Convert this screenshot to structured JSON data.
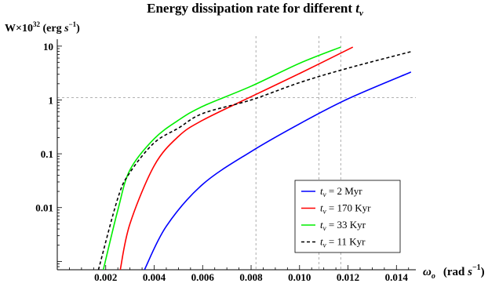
{
  "chart_data": {
    "type": "line",
    "title_main": "Energy dissipation rate for different ",
    "title_var": "t",
    "title_sub": "v",
    "ylabel": {
      "pre": "W×10",
      "exp": "32",
      "mid": " (erg ",
      "unit": "s",
      "unit_exp": "−1",
      "post": ")"
    },
    "xlabel": {
      "sym": "ω",
      "sym_sub": "o",
      "pre": "(rad ",
      "unit": "s",
      "unit_exp": "−1",
      "post": ")"
    },
    "x_scale": "linear",
    "y_scale": "log",
    "xlim": [
      0.0,
      0.0148
    ],
    "ylim": [
      0.0007,
      11
    ],
    "x_ticks": [
      {
        "value": 0.002,
        "label": "0.002"
      },
      {
        "value": 0.004,
        "label": "0.004"
      },
      {
        "value": 0.006,
        "label": "0.006"
      },
      {
        "value": 0.008,
        "label": "0.008"
      },
      {
        "value": 0.01,
        "label": "0.010"
      },
      {
        "value": 0.012,
        "label": "0.012"
      },
      {
        "value": 0.014,
        "label": "0.014"
      }
    ],
    "y_ticks": [
      {
        "value": 10,
        "label": "10"
      },
      {
        "value": 1,
        "label": "1"
      },
      {
        "value": 0.1,
        "label": "0.1"
      },
      {
        "value": 0.01,
        "label": "0.01"
      }
    ],
    "reference_lines": {
      "horizontal": [
        1.1
      ],
      "vertical": [
        0.0082,
        0.0108,
        0.0117
      ]
    },
    "legend_position": "bottom-right",
    "series": [
      {
        "legend_var": "t",
        "legend_sub": "v",
        "legend_value": " = 2 Myr",
        "color": "#0000ff",
        "dash": "solid",
        "points": [
          [
            0.0036,
            0.0007
          ],
          [
            0.0045,
            0.0045
          ],
          [
            0.006,
            0.027
          ],
          [
            0.008,
            0.11
          ],
          [
            0.01,
            0.36
          ],
          [
            0.012,
            1.05
          ],
          [
            0.0146,
            3.3
          ]
        ]
      },
      {
        "legend_var": "t",
        "legend_sub": "v",
        "legend_value": " = 170 Kyr",
        "color": "#ff0000",
        "dash": "solid",
        "points": [
          [
            0.0026,
            0.0007
          ],
          [
            0.003,
            0.005
          ],
          [
            0.004,
            0.06
          ],
          [
            0.005,
            0.21
          ],
          [
            0.006,
            0.42
          ],
          [
            0.008,
            1.15
          ],
          [
            0.01,
            3.1
          ],
          [
            0.0122,
            9.6
          ]
        ]
      },
      {
        "legend_var": "t",
        "legend_sub": "v",
        "legend_value": " = 33 Kyr",
        "color": "#00ee00",
        "dash": "solid",
        "points": [
          [
            0.0019,
            0.0007
          ],
          [
            0.0025,
            0.009
          ],
          [
            0.003,
            0.05
          ],
          [
            0.004,
            0.19
          ],
          [
            0.005,
            0.42
          ],
          [
            0.006,
            0.76
          ],
          [
            0.008,
            1.8
          ],
          [
            0.01,
            4.8
          ],
          [
            0.0117,
            9.6
          ]
        ]
      },
      {
        "legend_var": "t",
        "legend_sub": "v",
        "legend_value": " = 11 Kyr",
        "color": "#000000",
        "dash": "dashed",
        "points": [
          [
            0.0017,
            0.0007
          ],
          [
            0.0025,
            0.015
          ],
          [
            0.003,
            0.045
          ],
          [
            0.004,
            0.16
          ],
          [
            0.005,
            0.3
          ],
          [
            0.006,
            0.56
          ],
          [
            0.008,
            1.0
          ],
          [
            0.01,
            2.1
          ],
          [
            0.012,
            3.9
          ],
          [
            0.0146,
            7.9
          ]
        ]
      }
    ]
  }
}
